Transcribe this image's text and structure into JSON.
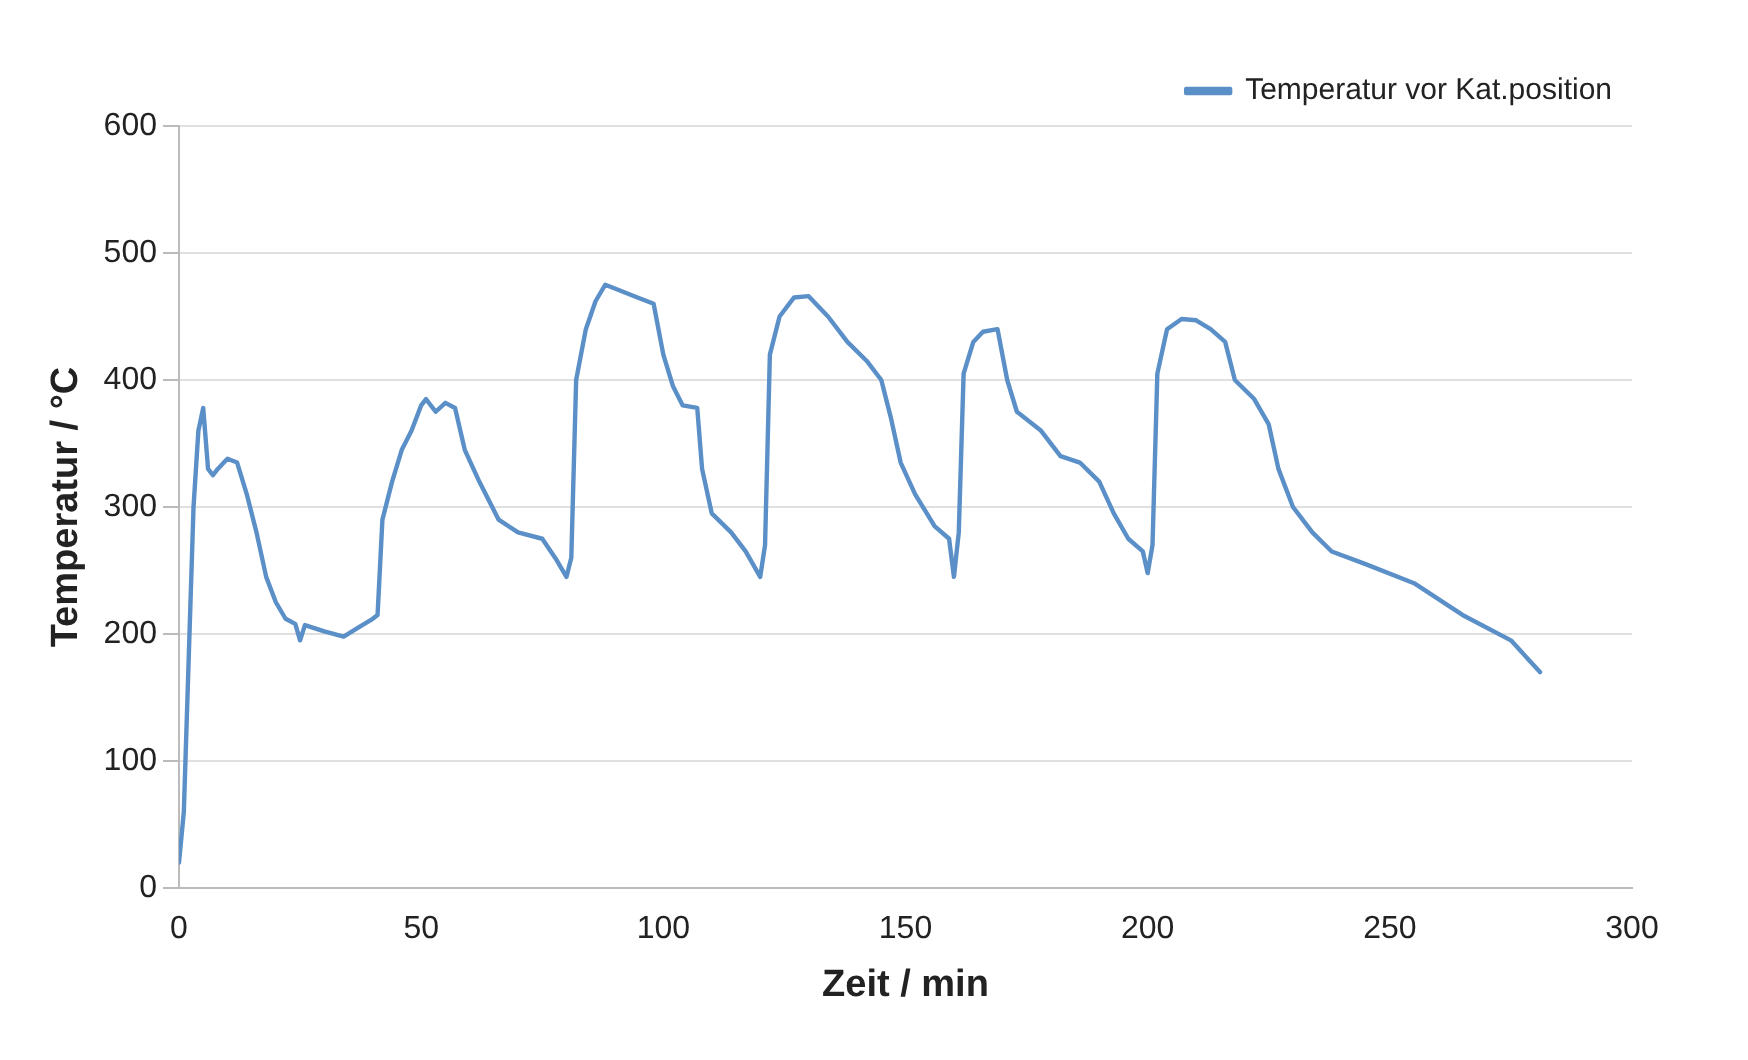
{
  "chart_data": {
    "type": "line",
    "xlabel": "Zeit / min",
    "ylabel": "Temperatur / °C",
    "xlim": [
      0,
      300
    ],
    "xticks": [
      0,
      50,
      100,
      150,
      200,
      250,
      300
    ],
    "ylim": [
      0,
      600
    ],
    "yticks": [
      0,
      100,
      200,
      300,
      400,
      500,
      600
    ],
    "grid": "y",
    "legend": "top right",
    "marker": "none",
    "line_style": "solid",
    "x": [
      0,
      1,
      3,
      4,
      5,
      6,
      7,
      8,
      10,
      12,
      14,
      16,
      18,
      20,
      22,
      24,
      25,
      26,
      30,
      34,
      37,
      40,
      41,
      42,
      44,
      46,
      48,
      50,
      51,
      53,
      55,
      57,
      59,
      62,
      66,
      70,
      75,
      78,
      80,
      81,
      82,
      84,
      86,
      88,
      90,
      94,
      98,
      100,
      102,
      104,
      107,
      108,
      110,
      114,
      117,
      120,
      121,
      122,
      124,
      127,
      130,
      134,
      138,
      142,
      145,
      147,
      149,
      152,
      156,
      159,
      160,
      161,
      162,
      164,
      166,
      169,
      171,
      173,
      178,
      182,
      186,
      190,
      193,
      196,
      199,
      200,
      201,
      202,
      204,
      207,
      210,
      213,
      216,
      218,
      222,
      225,
      227,
      230,
      234,
      238,
      245,
      255,
      265,
      275,
      281
    ],
    "series": [
      {
        "name": "Temperatur vor Kat.position",
        "color": "#5b8fc7",
        "values": [
          20,
          60,
          300,
          360,
          378,
          330,
          325,
          330,
          338,
          335,
          310,
          280,
          245,
          225,
          212,
          208,
          195,
          207,
          202,
          198,
          205,
          212,
          215,
          290,
          320,
          345,
          360,
          380,
          385,
          375,
          382,
          378,
          345,
          320,
          290,
          280,
          275,
          258,
          245,
          260,
          400,
          440,
          462,
          475,
          472,
          466,
          460,
          420,
          395,
          380,
          378,
          330,
          295,
          280,
          265,
          245,
          270,
          420,
          450,
          465,
          466,
          450,
          430,
          415,
          400,
          370,
          335,
          310,
          285,
          275,
          245,
          280,
          405,
          430,
          438,
          440,
          400,
          375,
          360,
          340,
          335,
          320,
          295,
          275,
          265,
          248,
          270,
          405,
          440,
          448,
          447,
          440,
          430,
          400,
          385,
          365,
          330,
          300,
          280,
          265,
          255,
          240,
          215,
          195,
          170
        ]
      }
    ]
  }
}
